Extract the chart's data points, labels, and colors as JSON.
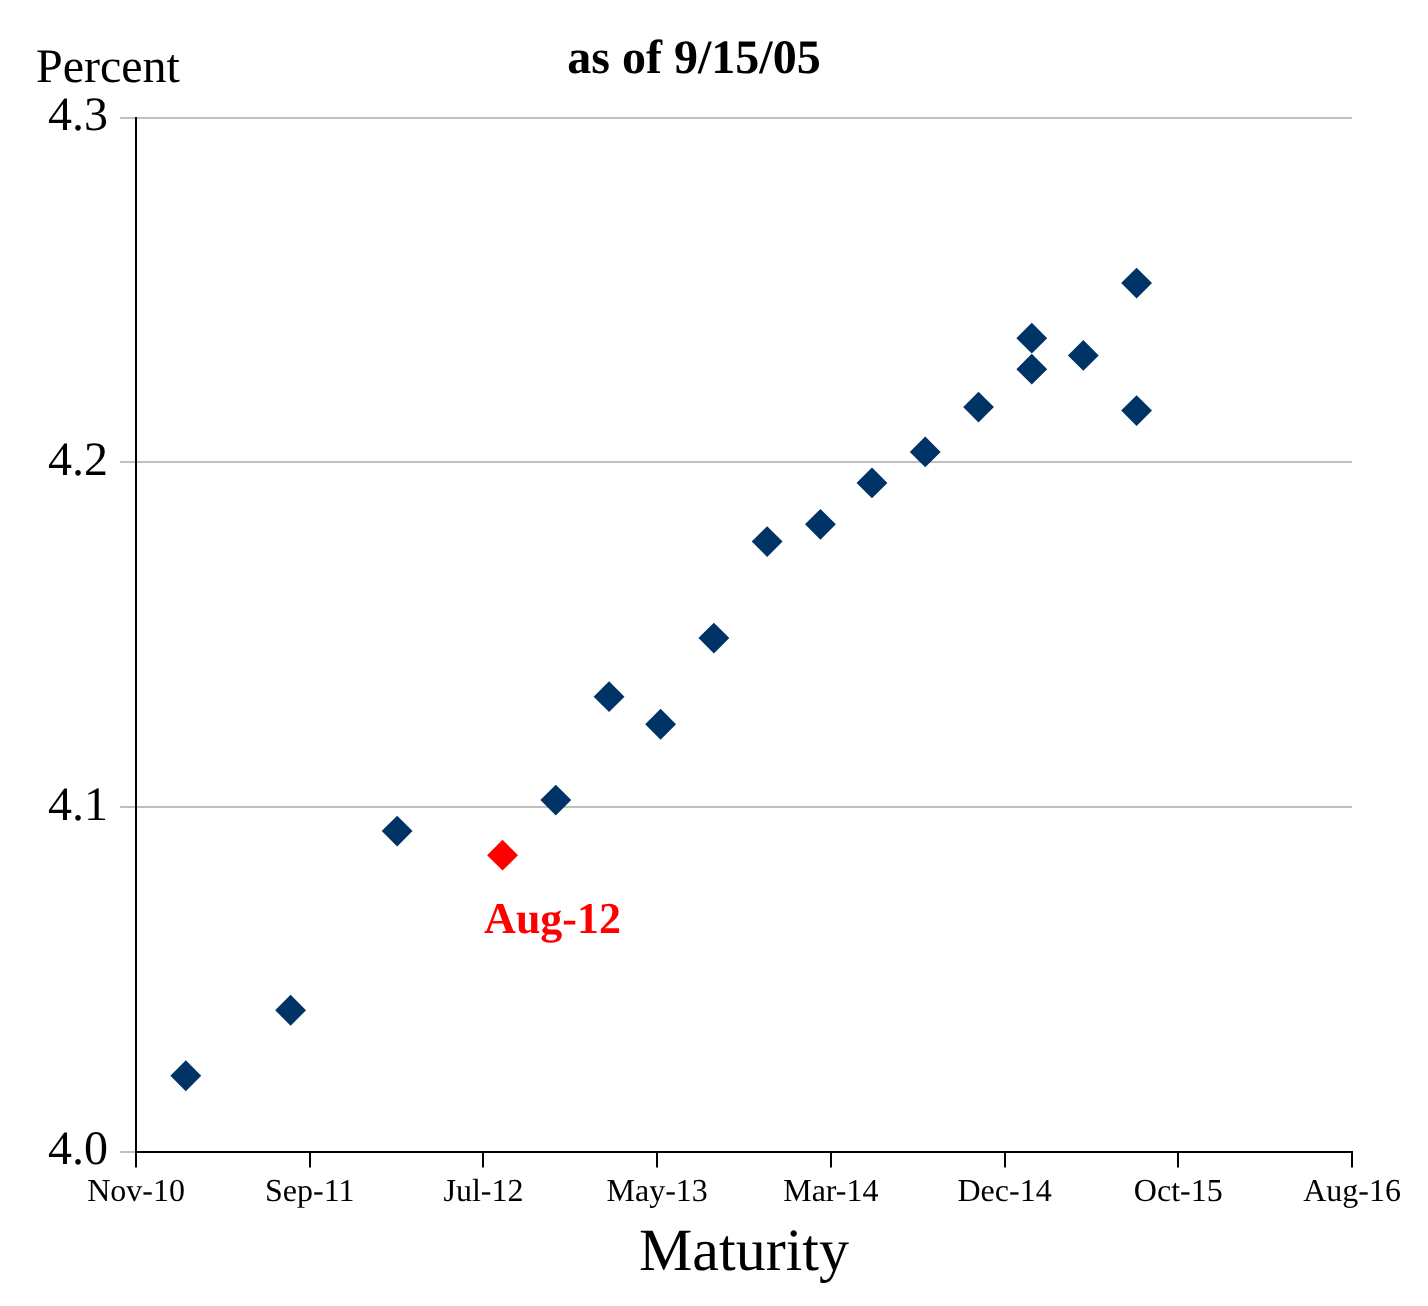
{
  "chart_data": {
    "type": "scatter",
    "title": "as of 9/15/05",
    "xlabel": "Maturity",
    "ylabel": "Percent",
    "series": [
      {
        "color": "#003366",
        "x": [
          "2011-02-15",
          "2011-08-15",
          "2012-02-15",
          "2012-11-15",
          "2013-02-15",
          "2013-05-15",
          "2013-08-15",
          "2013-11-15",
          "2014-02-15",
          "2014-05-15",
          "2014-08-15",
          "2014-11-15",
          "2015-02-15",
          "2015-02-15",
          "2015-05-15",
          "2015-08-15",
          "2015-08-15"
        ],
        "values": [
          4.022,
          4.041,
          4.093,
          4.102,
          4.132,
          4.124,
          4.149,
          4.177,
          4.182,
          4.194,
          4.203,
          4.216,
          4.236,
          4.227,
          4.231,
          4.252,
          4.215
        ]
      },
      {
        "color": "#ff0000",
        "x": [
          "2012-08-15"
        ],
        "values": [
          4.086
        ]
      }
    ],
    "annotations": [
      {
        "text": "Aug-12",
        "x": "2012-08-15",
        "y": 4.086
      }
    ],
    "xlim": [
      "2010-11-21",
      "2016-08-21"
    ],
    "xticks": [
      {
        "value": "2010-11-21",
        "label": "Nov-10"
      },
      {
        "value": "2011-09-17",
        "label": "Sep-11"
      },
      {
        "value": "2012-07-13",
        "label": "Jul-12"
      },
      {
        "value": "2013-05-09",
        "label": "May-13"
      },
      {
        "value": "2014-03-05",
        "label": "Mar-14"
      },
      {
        "value": "2014-12-30",
        "label": "Dec-14"
      },
      {
        "value": "2015-10-26",
        "label": "Oct-15"
      },
      {
        "value": "2016-08-21",
        "label": "Aug-16"
      }
    ],
    "ylim": [
      4,
      4.3
    ],
    "yticks": [
      {
        "value": 4,
        "label": "4.0"
      },
      {
        "value": 4.1,
        "label": "4.1"
      },
      {
        "value": 4.2,
        "label": "4.2"
      },
      {
        "value": 4.3,
        "label": "4.3"
      }
    ],
    "grid": "y",
    "marker": "diamond",
    "legend": false
  }
}
